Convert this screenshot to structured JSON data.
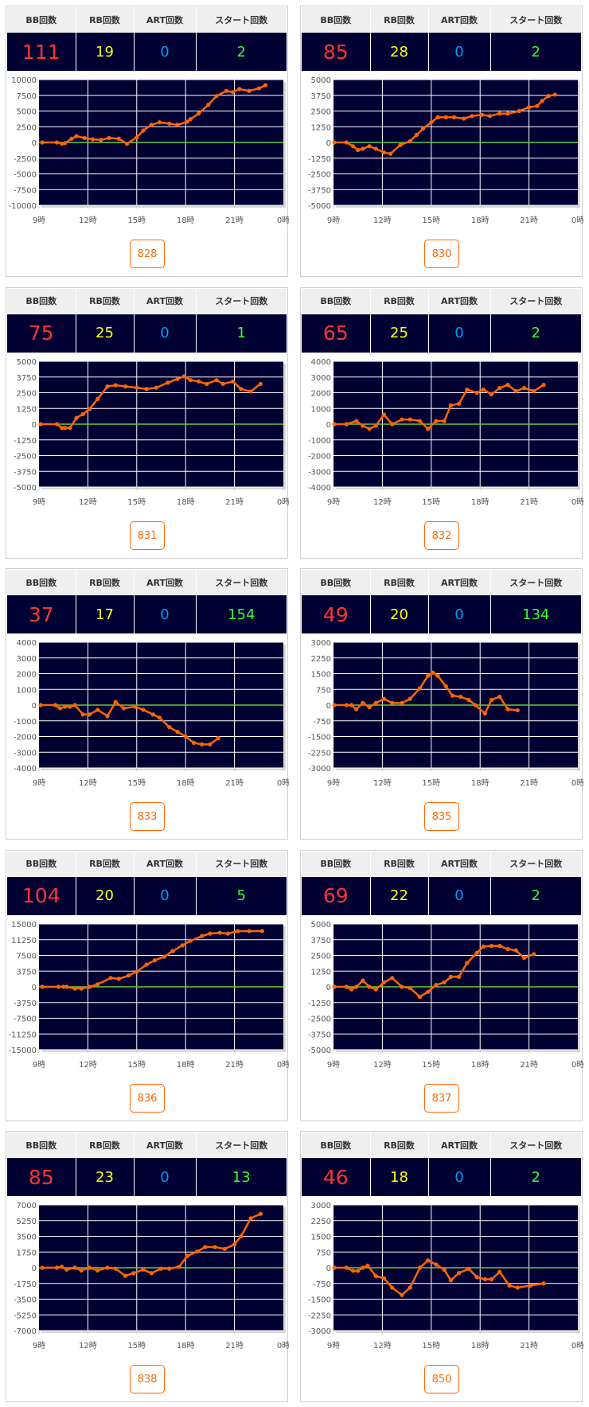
{
  "headers": {
    "bb": "BB回数",
    "rb": "RB回数",
    "art": "ART回数",
    "start": "スタート回数"
  },
  "colors": {
    "bb": "#ff3333",
    "rb": "#ffff00",
    "art": "#0099ff",
    "start": "#33ff33",
    "line": "#ff6600",
    "zero_line": "#66cc33",
    "plot_bg": "#000033",
    "button": "#ff6600"
  },
  "x_tick_labels": [
    "9時",
    "12時",
    "15時",
    "18時",
    "21時",
    "0時"
  ],
  "cards": [
    {
      "machine": "828",
      "bb": "111",
      "rb": "19",
      "art": "0",
      "start": "2"
    },
    {
      "machine": "830",
      "bb": "85",
      "rb": "28",
      "art": "0",
      "start": "2"
    },
    {
      "machine": "831",
      "bb": "75",
      "rb": "25",
      "art": "0",
      "start": "1"
    },
    {
      "machine": "832",
      "bb": "65",
      "rb": "25",
      "art": "0",
      "start": "2"
    },
    {
      "machine": "833",
      "bb": "37",
      "rb": "17",
      "art": "0",
      "start": "154"
    },
    {
      "machine": "835",
      "bb": "49",
      "rb": "20",
      "art": "0",
      "start": "134"
    },
    {
      "machine": "836",
      "bb": "104",
      "rb": "20",
      "art": "0",
      "start": "5"
    },
    {
      "machine": "837",
      "bb": "69",
      "rb": "22",
      "art": "0",
      "start": "2"
    },
    {
      "machine": "838",
      "bb": "85",
      "rb": "23",
      "art": "0",
      "start": "13"
    },
    {
      "machine": "850",
      "bb": "46",
      "rb": "18",
      "art": "0",
      "start": "2"
    }
  ],
  "chart_data": [
    {
      "type": "line",
      "xlim": [
        9,
        24
      ],
      "ylim": [
        -10000,
        10000
      ],
      "yticks": [
        "10000",
        "7500",
        "5000",
        "2500",
        "0",
        "-2500",
        "-5000",
        "-7500",
        "-10000"
      ],
      "x": [
        9.2,
        10.1,
        10.4,
        10.6,
        11.0,
        11.3,
        11.8,
        12.3,
        12.8,
        13.3,
        13.9,
        14.4,
        15.0,
        15.4,
        15.9,
        16.4,
        17.0,
        17.5,
        18.1,
        18.3,
        18.8,
        19.4,
        19.9,
        20.5,
        20.9,
        21.3,
        21.9,
        22.5,
        22.9
      ],
      "y": [
        0,
        0,
        -200,
        -100,
        600,
        1000,
        700,
        500,
        400,
        700,
        600,
        -200,
        800,
        1900,
        2800,
        3200,
        3000,
        2800,
        3300,
        3700,
        4600,
        6000,
        7400,
        8200,
        8000,
        8500,
        8200,
        8600,
        9100
      ]
    },
    {
      "type": "line",
      "xlim": [
        9,
        24
      ],
      "ylim": [
        -5000,
        5000
      ],
      "yticks": [
        "5000",
        "3750",
        "2500",
        "1250",
        "0",
        "-1250",
        "-2500",
        "-3750",
        "-5000"
      ],
      "x": [
        9.05,
        9.8,
        10.2,
        10.5,
        10.8,
        11.2,
        11.6,
        12.1,
        12.5,
        13.1,
        13.7,
        14.1,
        14.5,
        15.0,
        15.4,
        15.9,
        16.4,
        17.0,
        17.5,
        18.1,
        18.6,
        19.2,
        19.7,
        20.4,
        21.0,
        21.5,
        21.8,
        22.2,
        22.6
      ],
      "y": [
        0,
        0,
        -300,
        -600,
        -500,
        -300,
        -500,
        -800,
        -900,
        -200,
        100,
        600,
        1100,
        1600,
        2000,
        2000,
        2000,
        1900,
        2100,
        2200,
        2100,
        2300,
        2300,
        2500,
        2800,
        2900,
        3300,
        3700,
        3800
      ]
    },
    {
      "type": "line",
      "xlim": [
        9,
        24
      ],
      "ylim": [
        -5000,
        5000
      ],
      "yticks": [
        "5000",
        "3750",
        "2500",
        "1250",
        "0",
        "-1250",
        "-2500",
        "-3750",
        "-5000"
      ],
      "x": [
        9.1,
        10.1,
        10.4,
        10.6,
        10.9,
        11.3,
        11.7,
        12.1,
        12.6,
        13.2,
        13.7,
        14.3,
        15.0,
        15.6,
        16.2,
        16.9,
        17.5,
        17.9,
        18.3,
        18.8,
        19.3,
        19.9,
        20.3,
        20.9,
        21.4,
        22.0,
        22.6
      ],
      "y": [
        0,
        0,
        -300,
        -300,
        -300,
        500,
        800,
        1200,
        2000,
        3000,
        3100,
        3000,
        2900,
        2800,
        2900,
        3300,
        3600,
        3800,
        3500,
        3400,
        3200,
        3500,
        3200,
        3400,
        2800,
        2600,
        3200
      ]
    },
    {
      "type": "line",
      "xlim": [
        9,
        24
      ],
      "ylim": [
        -4000,
        4000
      ],
      "yticks": [
        "4000",
        "3000",
        "2000",
        "1000",
        "0",
        "-1000",
        "-2000",
        "-3000",
        "-4000"
      ],
      "x": [
        9.05,
        9.8,
        10.4,
        10.8,
        11.2,
        11.6,
        12.1,
        12.6,
        13.2,
        13.7,
        14.3,
        14.8,
        15.3,
        15.8,
        16.2,
        16.7,
        17.2,
        17.8,
        18.2,
        18.7,
        19.2,
        19.7,
        20.2,
        20.7,
        21.3,
        21.9
      ],
      "y": [
        0,
        0,
        200,
        -100,
        -300,
        -100,
        600,
        0,
        300,
        300,
        200,
        -300,
        200,
        200,
        1200,
        1300,
        2200,
        2000,
        2200,
        1900,
        2300,
        2500,
        2100,
        2300,
        2100,
        2500
      ]
    },
    {
      "type": "line",
      "xlim": [
        9,
        24
      ],
      "ylim": [
        -4000,
        4000
      ],
      "yticks": [
        "4000",
        "3000",
        "2000",
        "1000",
        "0",
        "-1000",
        "-2000",
        "-3000",
        "-4000"
      ],
      "x": [
        9.1,
        10.0,
        10.3,
        10.6,
        10.9,
        11.2,
        11.7,
        12.1,
        12.6,
        13.2,
        13.7,
        14.2,
        14.9,
        15.4,
        16.0,
        16.4,
        17.0,
        17.5,
        18.0,
        18.5,
        19.0,
        19.5,
        20.0
      ],
      "y": [
        0,
        0,
        -200,
        -100,
        -100,
        0,
        -600,
        -600,
        -300,
        -700,
        200,
        -200,
        -100,
        -300,
        -600,
        -800,
        -1400,
        -1700,
        -2000,
        -2400,
        -2500,
        -2500,
        -2100
      ]
    },
    {
      "type": "line",
      "xlim": [
        9,
        24
      ],
      "ylim": [
        -3000,
        3000
      ],
      "yticks": [
        "3000",
        "2250",
        "1500",
        "750",
        "0",
        "-750",
        "-1500",
        "-2250",
        "-3000"
      ],
      "x": [
        9.05,
        9.8,
        10.1,
        10.4,
        10.8,
        11.2,
        11.6,
        12.1,
        12.6,
        13.2,
        13.7,
        14.3,
        14.8,
        15.1,
        15.4,
        15.9,
        16.3,
        16.8,
        17.3,
        17.7,
        18.3,
        18.7,
        19.2,
        19.7,
        20.3
      ],
      "y": [
        0,
        0,
        0,
        -200,
        100,
        -100,
        100,
        300,
        100,
        100,
        300,
        800,
        1400,
        1550,
        1400,
        900,
        450,
        400,
        250,
        0,
        -400,
        250,
        400,
        -200,
        -250
      ]
    },
    {
      "type": "line",
      "xlim": [
        9,
        24
      ],
      "ylim": [
        -15000,
        15000
      ],
      "yticks": [
        "15000",
        "11250",
        "7500",
        "3750",
        "0",
        "-3750",
        "-7500",
        "-11250",
        "-15000"
      ],
      "x": [
        9.2,
        10.2,
        10.5,
        10.7,
        11.2,
        11.6,
        12.1,
        12.6,
        13.4,
        13.9,
        14.5,
        15.0,
        15.6,
        16.1,
        16.7,
        17.2,
        17.8,
        18.3,
        19.0,
        19.5,
        20.1,
        20.6,
        21.2,
        21.9,
        22.7
      ],
      "y": [
        0,
        0,
        0,
        0,
        -400,
        -400,
        0,
        600,
        2100,
        1900,
        2700,
        3600,
        5300,
        6300,
        7200,
        8500,
        9900,
        11000,
        12100,
        12700,
        12900,
        12700,
        13300,
        13300,
        13300
      ]
    },
    {
      "type": "line",
      "xlim": [
        9,
        24
      ],
      "ylim": [
        -5000,
        5000
      ],
      "yticks": [
        "5000",
        "3750",
        "2500",
        "1250",
        "0",
        "-1250",
        "-2500",
        "-3750",
        "-5000"
      ],
      "x": [
        9.05,
        9.8,
        10.1,
        10.4,
        10.8,
        11.2,
        11.6,
        12.1,
        12.6,
        13.2,
        13.7,
        14.3,
        14.8,
        15.3,
        15.8,
        16.2,
        16.7,
        17.2,
        17.8,
        18.2,
        18.7,
        19.2,
        19.7,
        20.2,
        20.7,
        21.3
      ],
      "y": [
        0,
        0,
        -200,
        0,
        500,
        0,
        -200,
        350,
        700,
        0,
        -100,
        -800,
        -400,
        150,
        350,
        800,
        800,
        1900,
        2700,
        3200,
        3250,
        3250,
        3000,
        2900,
        2300,
        2600
      ]
    },
    {
      "type": "line",
      "xlim": [
        9,
        24
      ],
      "ylim": [
        -7000,
        7000
      ],
      "yticks": [
        "7000",
        "5250",
        "3500",
        "1750",
        "0",
        "-1750",
        "-3500",
        "-5250",
        "-7000"
      ],
      "x": [
        9.2,
        10.1,
        10.4,
        10.7,
        11.2,
        11.6,
        12.1,
        12.6,
        13.2,
        13.7,
        14.3,
        14.8,
        15.4,
        15.9,
        16.5,
        17.0,
        17.6,
        18.1,
        18.7,
        19.2,
        19.8,
        20.4,
        21.0,
        21.4,
        22.0,
        22.6
      ],
      "y": [
        0,
        0,
        100,
        -200,
        0,
        -300,
        0,
        -300,
        0,
        -100,
        -900,
        -600,
        -200,
        -600,
        -100,
        -100,
        100,
        1300,
        1800,
        2300,
        2300,
        2100,
        2600,
        3500,
        5500,
        6000
      ]
    },
    {
      "type": "line",
      "xlim": [
        9,
        24
      ],
      "ylim": [
        -3000,
        3000
      ],
      "yticks": [
        "3000",
        "2250",
        "1500",
        "750",
        "0",
        "-750",
        "-1500",
        "-2250",
        "-3000"
      ],
      "x": [
        9.05,
        9.8,
        10.2,
        10.5,
        10.8,
        11.1,
        11.6,
        12.1,
        12.6,
        13.2,
        13.7,
        14.3,
        14.8,
        15.3,
        15.8,
        16.2,
        16.7,
        17.3,
        17.8,
        18.3,
        18.7,
        19.2,
        19.8,
        20.3,
        21.1,
        21.9
      ],
      "y": [
        0,
        0,
        -150,
        -150,
        0,
        100,
        -400,
        -500,
        -950,
        -1300,
        -950,
        0,
        350,
        150,
        -100,
        -600,
        -250,
        -50,
        -450,
        -550,
        -550,
        -200,
        -850,
        -950,
        -850,
        -750
      ]
    }
  ]
}
